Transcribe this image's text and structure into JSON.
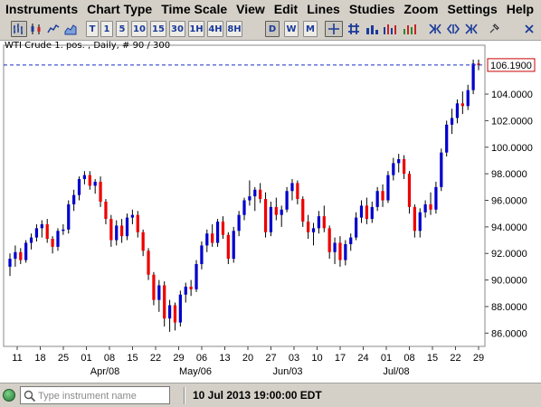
{
  "menu": [
    "Instruments",
    "Chart Type",
    "Time Scale",
    "View",
    "Edit",
    "Lines",
    "Studies",
    "Zoom",
    "Settings",
    "Help"
  ],
  "toolbar": {
    "timeframes": [
      "T",
      "1",
      "5",
      "10",
      "15",
      "30",
      "1H",
      "4H",
      "8H",
      "D",
      "W",
      "M"
    ],
    "active_timeframe": "D",
    "icons": [
      "bar-chart-icon",
      "candlestick-icon",
      "line-chart-icon",
      "area-chart-icon",
      "crosshair-icon",
      "grid-icon",
      "bar-volume-icon",
      "period-bars-icon",
      "trend-in-icon",
      "trend-out-icon",
      "fib-icon",
      "fan-icon",
      "close-tool-icon",
      "pin-icon"
    ]
  },
  "chart": {
    "header": "WTI Crude 1. pos. , Daily, # 90 / 300",
    "current_price_label": "106.1900"
  },
  "chart_data": {
    "type": "candlestick",
    "title": "WTI Crude 1. pos. , Daily, # 90 / 300",
    "y_ticks": [
      "106.1900",
      "104.0000",
      "102.0000",
      "100.0000",
      "98.0000",
      "96.0000",
      "94.0000",
      "92.0000",
      "90.0000",
      "88.0000",
      "86.0000"
    ],
    "x_ticks": [
      "11",
      "18",
      "25",
      "01",
      "08",
      "15",
      "22",
      "29",
      "06",
      "13",
      "20",
      "27",
      "03",
      "10",
      "17",
      "24",
      "01",
      "08",
      "15",
      "22",
      "29"
    ],
    "month_labels": [
      "Apr/08",
      "May/06",
      "Jun/03",
      "Jul/08"
    ],
    "ylim": [
      85.0,
      107.0
    ],
    "current_price": 106.19,
    "up_color": "#0000cc",
    "down_color": "#ee0000",
    "candles": [
      [
        91.0,
        92.0,
        90.3,
        91.6
      ],
      [
        91.6,
        92.6,
        91.0,
        92.1
      ],
      [
        92.1,
        92.4,
        91.2,
        91.5
      ],
      [
        91.5,
        93.0,
        91.3,
        92.8
      ],
      [
        92.8,
        93.5,
        92.3,
        93.2
      ],
      [
        93.2,
        94.2,
        92.9,
        93.9
      ],
      [
        93.9,
        94.5,
        93.2,
        94.2
      ],
      [
        94.2,
        94.6,
        92.8,
        93.1
      ],
      [
        93.1,
        93.3,
        92.0,
        92.5
      ],
      [
        92.5,
        93.9,
        92.2,
        93.7
      ],
      [
        93.7,
        94.2,
        93.4,
        93.8
      ],
      [
        93.8,
        96.0,
        93.5,
        95.7
      ],
      [
        95.7,
        96.8,
        95.2,
        96.4
      ],
      [
        96.4,
        97.8,
        96.0,
        97.6
      ],
      [
        97.6,
        98.2,
        97.2,
        97.9
      ],
      [
        97.9,
        98.2,
        96.8,
        97.1
      ],
      [
        97.1,
        97.6,
        96.5,
        97.4
      ],
      [
        97.4,
        97.8,
        95.5,
        95.9
      ],
      [
        95.9,
        96.1,
        94.2,
        94.6
      ],
      [
        94.6,
        94.9,
        92.5,
        93.0
      ],
      [
        93.0,
        94.5,
        92.6,
        94.1
      ],
      [
        94.1,
        94.6,
        92.8,
        93.3
      ],
      [
        93.3,
        95.0,
        93.0,
        94.7
      ],
      [
        94.7,
        95.3,
        94.2,
        94.9
      ],
      [
        94.9,
        95.2,
        93.2,
        93.6
      ],
      [
        93.6,
        93.8,
        91.8,
        92.2
      ],
      [
        92.2,
        92.4,
        90.0,
        90.4
      ],
      [
        90.4,
        90.6,
        88.1,
        88.5
      ],
      [
        88.5,
        90.0,
        87.6,
        89.6
      ],
      [
        89.6,
        89.9,
        86.5,
        87.1
      ],
      [
        87.1,
        88.5,
        86.1,
        88.1
      ],
      [
        88.1,
        88.3,
        86.2,
        86.8
      ],
      [
        86.8,
        89.2,
        86.5,
        88.9
      ],
      [
        88.9,
        89.8,
        88.3,
        89.5
      ],
      [
        89.5,
        90.0,
        88.8,
        89.3
      ],
      [
        89.3,
        91.5,
        89.1,
        91.2
      ],
      [
        91.2,
        92.9,
        90.8,
        92.6
      ],
      [
        92.6,
        93.8,
        92.1,
        93.5
      ],
      [
        93.5,
        94.2,
        92.5,
        92.8
      ],
      [
        92.8,
        94.6,
        92.5,
        94.4
      ],
      [
        94.4,
        94.8,
        93.1,
        93.4
      ],
      [
        93.4,
        93.6,
        91.2,
        91.6
      ],
      [
        91.6,
        94.0,
        91.3,
        93.7
      ],
      [
        93.7,
        95.2,
        93.3,
        94.9
      ],
      [
        94.9,
        96.2,
        94.5,
        96.0
      ],
      [
        96.0,
        97.5,
        95.6,
        96.3
      ],
      [
        96.3,
        97.0,
        95.2,
        96.8
      ],
      [
        96.8,
        97.3,
        95.8,
        96.1
      ],
      [
        96.1,
        96.6,
        93.2,
        93.6
      ],
      [
        93.6,
        95.9,
        93.3,
        95.5
      ],
      [
        95.5,
        96.2,
        94.5,
        94.9
      ],
      [
        94.9,
        95.6,
        94.0,
        95.3
      ],
      [
        95.3,
        97.0,
        95.1,
        96.7
      ],
      [
        96.7,
        97.6,
        96.0,
        97.3
      ],
      [
        97.3,
        97.5,
        95.7,
        96.1
      ],
      [
        96.1,
        96.3,
        94.0,
        94.4
      ],
      [
        94.4,
        94.9,
        93.1,
        93.6
      ],
      [
        93.6,
        94.3,
        92.6,
        93.9
      ],
      [
        93.9,
        95.2,
        93.5,
        94.8
      ],
      [
        94.8,
        95.6,
        93.6,
        93.9
      ],
      [
        93.9,
        94.1,
        91.6,
        92.1
      ],
      [
        92.1,
        93.2,
        91.2,
        92.8
      ],
      [
        92.8,
        93.3,
        91.0,
        91.5
      ],
      [
        91.5,
        93.0,
        91.1,
        92.7
      ],
      [
        92.7,
        93.5,
        92.2,
        93.2
      ],
      [
        93.2,
        95.1,
        93.0,
        94.7
      ],
      [
        94.7,
        96.0,
        94.3,
        95.6
      ],
      [
        95.6,
        96.2,
        94.2,
        94.6
      ],
      [
        94.6,
        95.9,
        94.3,
        95.5
      ],
      [
        95.5,
        97.0,
        95.2,
        96.7
      ],
      [
        96.7,
        97.2,
        95.5,
        96.0
      ],
      [
        96.0,
        98.2,
        95.8,
        97.9
      ],
      [
        97.9,
        99.2,
        97.5,
        98.8
      ],
      [
        98.8,
        99.5,
        98.1,
        99.1
      ],
      [
        99.1,
        99.4,
        97.6,
        98.0
      ],
      [
        98.0,
        98.2,
        95.0,
        95.5
      ],
      [
        95.5,
        95.7,
        93.2,
        93.7
      ],
      [
        93.7,
        95.4,
        93.2,
        95.1
      ],
      [
        95.1,
        96.0,
        94.7,
        95.7
      ],
      [
        95.7,
        96.6,
        94.9,
        95.3
      ],
      [
        95.3,
        97.4,
        95.0,
        97.0
      ],
      [
        97.0,
        99.9,
        96.7,
        99.6
      ],
      [
        99.6,
        102.0,
        99.3,
        101.7
      ],
      [
        101.7,
        102.9,
        101.0,
        102.2
      ],
      [
        102.2,
        103.6,
        101.8,
        103.3
      ],
      [
        103.3,
        104.2,
        102.5,
        103.1
      ],
      [
        103.1,
        104.7,
        102.8,
        104.3
      ],
      [
        104.3,
        106.6,
        104.0,
        106.3
      ],
      [
        106.3,
        106.6,
        105.8,
        106.19
      ]
    ]
  }
}
